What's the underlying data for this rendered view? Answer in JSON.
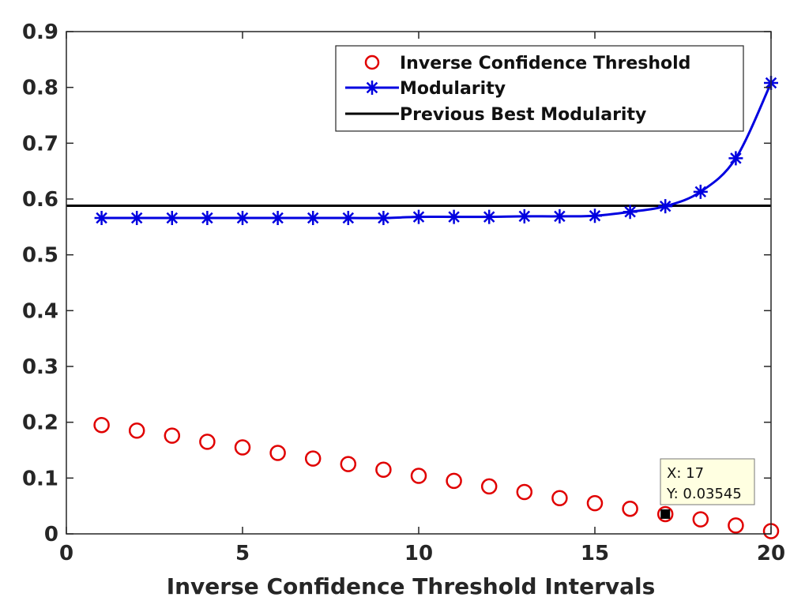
{
  "chart_data": {
    "type": "line",
    "title": "",
    "xlabel": "Inverse Confidence Threshold Intervals",
    "ylabel": "",
    "xlim": [
      0,
      20
    ],
    "ylim": [
      0,
      0.9
    ],
    "x_ticks": [
      0,
      5,
      10,
      15,
      20
    ],
    "y_ticks": [
      0,
      0.1,
      0.2,
      0.3,
      0.4,
      0.5,
      0.6,
      0.7,
      0.8,
      0.9
    ],
    "x_tick_labels": [
      "0",
      "5",
      "10",
      "15",
      "20"
    ],
    "y_tick_labels": [
      "0",
      "0.1",
      "0.2",
      "0.3",
      "0.4",
      "0.5",
      "0.6",
      "0.7",
      "0.8",
      "0.9"
    ],
    "grid": false,
    "legend_position": "top-right",
    "x": [
      1,
      2,
      3,
      4,
      5,
      6,
      7,
      8,
      9,
      10,
      11,
      12,
      13,
      14,
      15,
      16,
      17,
      18,
      19,
      20
    ],
    "series": [
      {
        "name": "Inverse Confidence Threshold",
        "style": "markers-circle",
        "color": "#e00000",
        "values": [
          0.195,
          0.185,
          0.176,
          0.165,
          0.155,
          0.145,
          0.135,
          0.125,
          0.115,
          0.104,
          0.095,
          0.085,
          0.075,
          0.064,
          0.055,
          0.045,
          0.03545,
          0.026,
          0.015,
          0.005
        ]
      },
      {
        "name": "Modularity",
        "style": "line-asterisk",
        "color": "#0000e0",
        "values": [
          0.566,
          0.566,
          0.566,
          0.566,
          0.566,
          0.566,
          0.566,
          0.566,
          0.566,
          0.568,
          0.568,
          0.568,
          0.569,
          0.569,
          0.57,
          0.577,
          0.587,
          0.613,
          0.673,
          0.808
        ]
      },
      {
        "name": "Previous Best Modularity",
        "style": "horizontal-line",
        "color": "#000000",
        "value": 0.588
      }
    ],
    "datatip": {
      "x_text": "X: 17",
      "y_text": "Y: 0.03545",
      "x": 17,
      "y": 0.03545
    }
  }
}
